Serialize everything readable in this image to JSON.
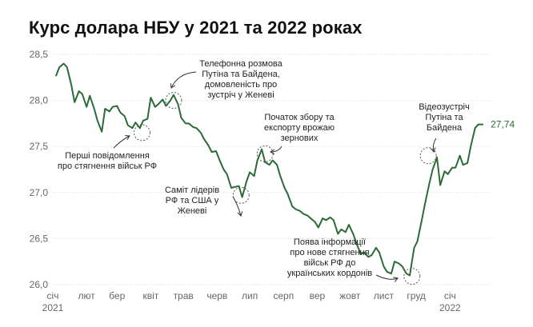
{
  "chart_data": {
    "type": "line",
    "title": "Курс долара НБУ у 2021 та 2022 роках",
    "xlabel": "",
    "ylabel": "",
    "ylim": [
      26.0,
      28.5
    ],
    "yticks": [
      "28,5",
      "28,0",
      "27,5",
      "27,0",
      "26,5",
      "26,0"
    ],
    "xticks": [
      "січ",
      "лют",
      "бер",
      "квіт",
      "трав",
      "черв",
      "лип",
      "серп",
      "вер",
      "жовт",
      "лист",
      "груд",
      "січ"
    ],
    "xtick_years": [
      "2021",
      "2022"
    ],
    "grid": true,
    "line_color": "#2a6b36",
    "end_label": "27,74",
    "x": [
      "2021-01-04",
      "2021-01-07",
      "2021-01-11",
      "2021-01-14",
      "2021-01-18",
      "2021-01-21",
      "2021-01-25",
      "2021-01-28",
      "2021-02-01",
      "2021-02-04",
      "2021-02-08",
      "2021-02-11",
      "2021-02-15",
      "2021-02-18",
      "2021-02-22",
      "2021-02-25",
      "2021-03-01",
      "2021-03-04",
      "2021-03-08",
      "2021-03-11",
      "2021-03-15",
      "2021-03-18",
      "2021-03-22",
      "2021-03-25",
      "2021-03-29",
      "2021-04-01",
      "2021-04-05",
      "2021-04-08",
      "2021-04-12",
      "2021-04-15",
      "2021-04-19",
      "2021-04-22",
      "2021-04-26",
      "2021-04-29",
      "2021-05-03",
      "2021-05-06",
      "2021-05-10",
      "2021-05-13",
      "2021-05-17",
      "2021-05-20",
      "2021-05-24",
      "2021-05-27",
      "2021-05-31",
      "2021-06-03",
      "2021-06-07",
      "2021-06-10",
      "2021-06-14",
      "2021-06-17",
      "2021-06-21",
      "2021-06-24",
      "2021-06-28",
      "2021-07-01",
      "2021-07-05",
      "2021-07-08",
      "2021-07-12",
      "2021-07-15",
      "2021-07-19",
      "2021-07-22",
      "2021-07-26",
      "2021-07-29",
      "2021-08-02",
      "2021-08-05",
      "2021-08-09",
      "2021-08-12",
      "2021-08-16",
      "2021-08-19",
      "2021-08-23",
      "2021-08-26",
      "2021-08-30",
      "2021-09-02",
      "2021-09-06",
      "2021-09-09",
      "2021-09-13",
      "2021-09-16",
      "2021-09-20",
      "2021-09-23",
      "2021-09-27",
      "2021-09-30",
      "2021-10-04",
      "2021-10-07",
      "2021-10-11",
      "2021-10-14",
      "2021-10-18",
      "2021-10-21",
      "2021-10-25",
      "2021-10-28",
      "2021-11-01",
      "2021-11-04",
      "2021-11-08",
      "2021-11-11",
      "2021-11-15",
      "2021-11-18",
      "2021-11-22",
      "2021-11-25",
      "2021-11-29",
      "2021-12-02",
      "2021-12-06",
      "2021-12-09",
      "2021-12-13",
      "2021-12-16",
      "2021-12-20",
      "2021-12-23",
      "2021-12-27",
      "2021-12-30",
      "2022-01-03",
      "2022-01-06",
      "2022-01-10",
      "2022-01-13",
      "2022-01-17",
      "2022-01-20",
      "2022-01-24",
      "2022-01-27",
      "2022-01-31"
    ],
    "values": [
      28.27,
      28.36,
      28.4,
      28.36,
      28.17,
      27.98,
      28.1,
      28.07,
      27.93,
      28.05,
      27.91,
      27.78,
      27.66,
      27.91,
      27.88,
      27.93,
      27.94,
      27.87,
      27.83,
      27.73,
      27.7,
      27.76,
      27.7,
      27.78,
      27.8,
      28.03,
      27.93,
      27.96,
      28.01,
      27.94,
      28.0,
      28.06,
      27.96,
      27.81,
      27.75,
      27.75,
      27.71,
      27.7,
      27.65,
      27.58,
      27.51,
      27.44,
      27.45,
      27.36,
      27.25,
      27.2,
      27.05,
      27.06,
      27.07,
      26.95,
      27.12,
      27.22,
      27.18,
      27.35,
      27.47,
      27.33,
      27.3,
      27.35,
      27.3,
      27.18,
      27.05,
      26.98,
      26.85,
      26.82,
      26.8,
      26.77,
      26.75,
      26.72,
      26.68,
      26.62,
      26.72,
      26.7,
      26.73,
      26.7,
      26.55,
      26.6,
      26.57,
      26.65,
      26.55,
      26.45,
      26.33,
      26.35,
      26.3,
      26.32,
      26.4,
      26.35,
      26.2,
      26.14,
      26.12,
      26.25,
      26.23,
      26.2,
      26.12,
      26.1,
      26.4,
      26.47,
      26.7,
      26.88,
      27.1,
      27.25,
      27.38,
      27.08,
      27.23,
      27.2,
      27.27,
      27.27,
      27.4,
      27.3,
      27.32,
      27.5,
      27.7,
      27.74,
      27.74
    ],
    "annotations": [
      {
        "id": "a1",
        "date": "2021-03-24",
        "value": 27.65,
        "lines": [
          "Перші повідомлення",
          "про стягнення військ РФ"
        ]
      },
      {
        "id": "a2",
        "date": "2021-04-22",
        "value": 28.0,
        "lines": [
          "Телефонна розмова",
          "Путіна та Байдена,",
          "домовленість про",
          "зустріч у Женеві"
        ]
      },
      {
        "id": "a3",
        "date": "2021-06-23",
        "value": 26.97,
        "lines": [
          "Саміт лідерів",
          "РФ та США у",
          "Женеві"
        ]
      },
      {
        "id": "a4",
        "date": "2021-07-15",
        "value": 27.42,
        "lines": [
          "Початок збору та",
          "експорту врожаю",
          "зернових"
        ]
      },
      {
        "id": "a5",
        "date": "2021-11-27",
        "value": 26.09,
        "lines": [
          "Поява інформації",
          "про нове стягнення",
          "військ РФ до",
          "українських кордонів"
        ]
      },
      {
        "id": "a6",
        "date": "2021-12-12",
        "value": 27.4,
        "lines": [
          "Відеозустріч",
          "Путіна та",
          "Байдена"
        ]
      }
    ]
  }
}
